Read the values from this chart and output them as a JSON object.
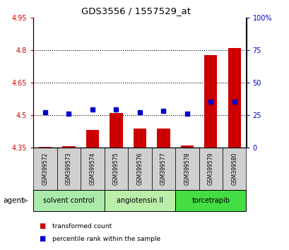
{
  "title": "GDS3556 / 1557529_at",
  "samples": [
    "GSM399572",
    "GSM399573",
    "GSM399574",
    "GSM399575",
    "GSM399576",
    "GSM399577",
    "GSM399578",
    "GSM399579",
    "GSM399580"
  ],
  "transformed_counts": [
    4.352,
    4.356,
    4.43,
    4.51,
    4.437,
    4.437,
    4.358,
    4.775,
    4.808
  ],
  "percentile_ranks": [
    27,
    26,
    29,
    29,
    27,
    28,
    26,
    35,
    35
  ],
  "baseline": 4.35,
  "ylim_left": [
    4.35,
    4.95
  ],
  "ylim_right": [
    0,
    100
  ],
  "yticks_left": [
    4.35,
    4.5,
    4.65,
    4.8,
    4.95
  ],
  "yticks_right": [
    0,
    25,
    50,
    75,
    100
  ],
  "ytick_labels_left": [
    "4.35",
    "4.5",
    "4.65",
    "4.8",
    "4.95"
  ],
  "ytick_labels_right": [
    "0",
    "25",
    "50",
    "75",
    "100%"
  ],
  "groups": [
    {
      "label": "solvent control",
      "samples": [
        0,
        1,
        2
      ],
      "color": "#aaeaaa"
    },
    {
      "label": "angiotensin II",
      "samples": [
        3,
        4,
        5
      ],
      "color": "#bbeeaa"
    },
    {
      "label": "torcetrapib",
      "samples": [
        6,
        7,
        8
      ],
      "color": "#44dd44"
    }
  ],
  "bar_color": "#cc0000",
  "dot_color": "#0000cc",
  "bar_width": 0.55,
  "tick_color_left": "#cc0000",
  "tick_color_right": "#0000cc",
  "legend_items": [
    {
      "label": "transformed count",
      "color": "#cc0000"
    },
    {
      "label": "percentile rank within the sample",
      "color": "#0000cc"
    }
  ],
  "agent_label": "agent",
  "sample_bg_color": "#d0d0d0"
}
